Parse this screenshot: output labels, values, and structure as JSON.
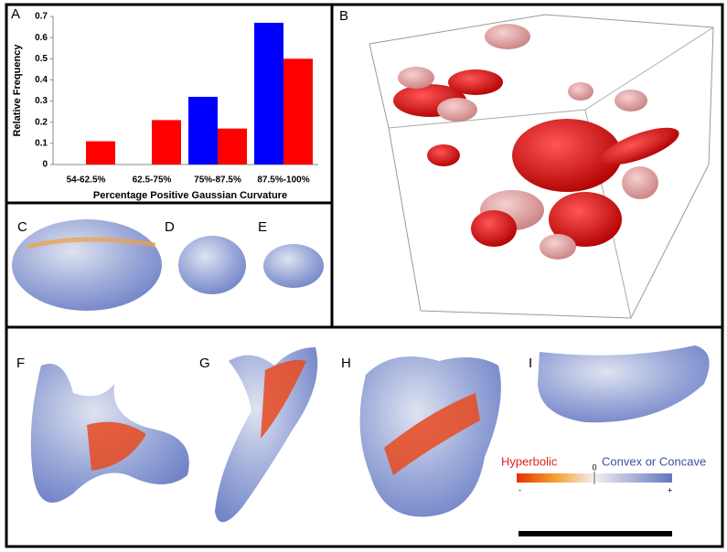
{
  "chart_data": {
    "type": "bar",
    "categories": [
      "54-62.5%",
      "62.5-75%",
      "75%-87.5%",
      "87.5%-100%"
    ],
    "series": [
      {
        "color": "#0000ff",
        "values": [
          null,
          null,
          0.32,
          0.67
        ]
      },
      {
        "color": "#ff0000",
        "values": [
          0.11,
          0.21,
          0.17,
          0.5
        ]
      }
    ],
    "x_label": "Percentage Positive Gaussian Curvature",
    "y_label": "Relative Frequency",
    "ylim": [
      0,
      0.7
    ],
    "yticks": [
      0,
      0.1,
      0.2,
      0.3,
      0.4,
      0.5,
      0.6,
      0.7
    ]
  },
  "figure": {
    "panel_labels": [
      "A",
      "B",
      "C",
      "D",
      "E",
      "F",
      "G",
      "H",
      "I"
    ],
    "colorbar": {
      "left_label": "Hyperbolic",
      "right_label": "Convex or Concave",
      "min_label": "-",
      "mid_label": "0",
      "max_label": "+"
    }
  }
}
